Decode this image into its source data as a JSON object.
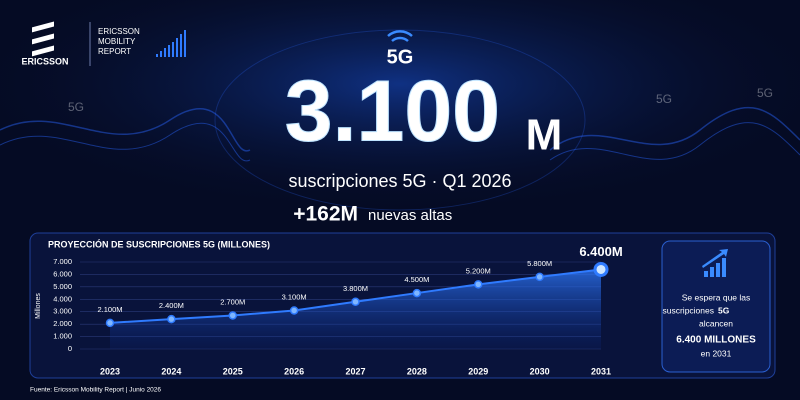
{
  "header": {
    "brand": "ERICSSON",
    "report_line1": "ERICSSON",
    "report_line2": "MOBILITY",
    "report_line3": "REPORT"
  },
  "hero": {
    "badge": "5G",
    "number": "3.100",
    "unit": "M",
    "caption": "suscripciones 5G · Q1 2026",
    "additions": "+162M",
    "additions_text": "nuevas altas"
  },
  "background_labels": [
    "5G",
    "5G",
    "5G"
  ],
  "callout": {
    "line1": "Se espera que las",
    "line2a": "suscripciones",
    "line2b": "5G",
    "line3": "alcancen",
    "highlight": "6.400 MILLONES",
    "line4": "en 2031"
  },
  "footer": "Fuente: Ericsson Mobility Report  |  Junio 2026",
  "chart_data": {
    "type": "area",
    "title": "PROYECCIÓN DE SUSCRIPCIONES 5G (MILLONES)",
    "y_label": "Millones",
    "categories": [
      "2023",
      "2024",
      "2025",
      "2026",
      "2027",
      "2028",
      "2029",
      "2030",
      "2031"
    ],
    "values": [
      2100,
      2400,
      2700,
      3100,
      3800,
      4500,
      5200,
      5800,
      6400
    ],
    "value_labels": [
      "2.100M",
      "2.400M",
      "2.700M",
      "3.100M",
      "3.800M",
      "4.500M",
      "5.200M",
      "5.800M",
      "6.400M"
    ],
    "color": "#2f7bff",
    "ylim": [
      0,
      7000
    ],
    "yticks": [
      0,
      {
        "value": 1000,
        "label": "1.000"
      },
      {
        "value": 2000,
        "label": "2.000"
      },
      {
        "value": 3000,
        "label": "3.000"
      },
      {
        "value": 4000,
        "label": "4.000"
      },
      {
        "value": 5000,
        "label": "5.000"
      },
      {
        "value": 6000,
        "label": "6.000"
      },
      {
        "value": 7000,
        "label": "7.000"
      }
    ],
    "grid": true
  }
}
